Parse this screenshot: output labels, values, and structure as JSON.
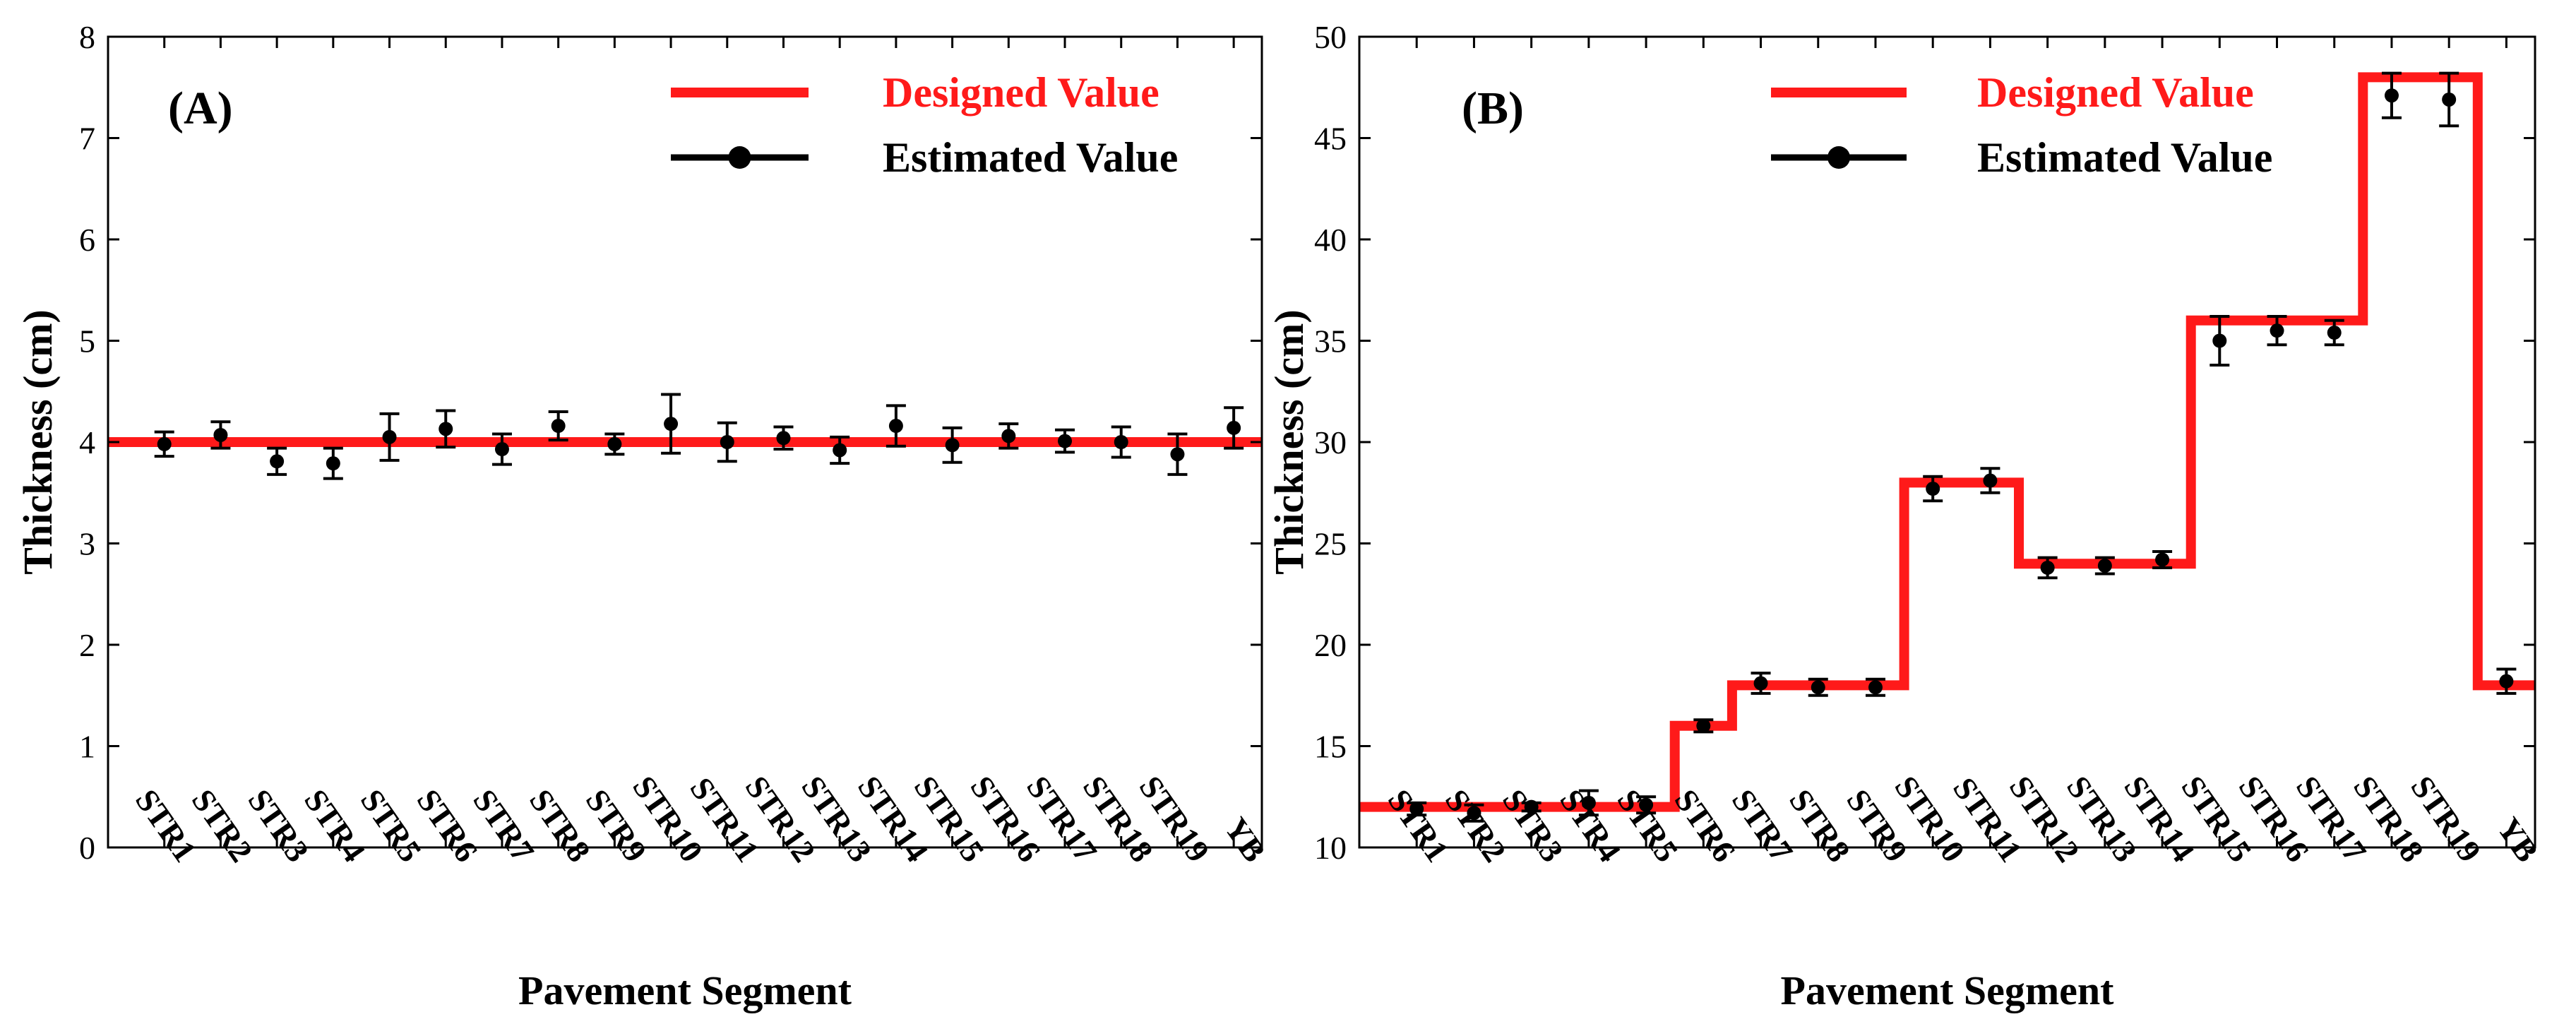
{
  "colors": {
    "designed": "#ff1a1a",
    "estimated": "#000000",
    "axis": "#000000"
  },
  "chart_data": [
    {
      "type": "line",
      "panel_label": "(A)",
      "xlabel": "Pavement Segment",
      "ylabel": "Thickness (cm)",
      "ylim": [
        0,
        8
      ],
      "yticks": [
        0,
        1,
        2,
        3,
        4,
        5,
        6,
        7,
        8
      ],
      "grid": false,
      "legend_position": "top-right",
      "categories": [
        "STR1",
        "STR2",
        "STR3",
        "STR4",
        "STR5",
        "STR6",
        "STR7",
        "STR8",
        "STR9",
        "STR10",
        "STR11",
        "STR12",
        "STR13",
        "STR14",
        "STR15",
        "STR16",
        "STR17",
        "STR18",
        "STR19",
        "YB"
      ],
      "series": [
        {
          "name": "Designed Value",
          "style": "step",
          "values": [
            4,
            4,
            4,
            4,
            4,
            4,
            4,
            4,
            4,
            4,
            4,
            4,
            4,
            4,
            4,
            4,
            4,
            4,
            4,
            4
          ]
        },
        {
          "name": "Estimated Value",
          "style": "errorbar",
          "values": [
            3.98,
            4.07,
            3.81,
            3.79,
            4.05,
            4.13,
            3.93,
            4.16,
            3.98,
            4.18,
            4.0,
            4.04,
            3.92,
            4.16,
            3.97,
            4.06,
            4.01,
            4.0,
            3.88,
            4.14
          ],
          "errors": [
            0.12,
            0.13,
            0.13,
            0.15,
            0.23,
            0.18,
            0.15,
            0.14,
            0.1,
            0.29,
            0.19,
            0.11,
            0.13,
            0.2,
            0.17,
            0.12,
            0.11,
            0.15,
            0.2,
            0.2
          ]
        }
      ]
    },
    {
      "type": "line",
      "panel_label": "(B)",
      "xlabel": "Pavement Segment",
      "ylabel": "Thickness (cm)",
      "ylim": [
        10,
        50
      ],
      "yticks": [
        10,
        15,
        20,
        25,
        30,
        35,
        40,
        45,
        50
      ],
      "grid": false,
      "legend_position": "top-left",
      "categories": [
        "STR1",
        "STR2",
        "STR3",
        "STR4",
        "STR5",
        "STR6",
        "STR7",
        "STR8",
        "STR9",
        "STR10",
        "STR11",
        "STR12",
        "STR13",
        "STR14",
        "STR15",
        "STR16",
        "STR17",
        "STR18",
        "STR19",
        "YB"
      ],
      "series": [
        {
          "name": "Designed Value",
          "style": "step",
          "values": [
            12,
            12,
            12,
            12,
            12,
            16,
            18,
            18,
            18,
            28,
            28,
            24,
            24,
            24,
            36,
            36,
            36,
            48,
            48,
            18
          ]
        },
        {
          "name": "Estimated Value",
          "style": "errorbar",
          "values": [
            11.9,
            11.7,
            12.0,
            12.2,
            12.1,
            16.0,
            18.1,
            17.9,
            17.9,
            27.7,
            28.1,
            23.8,
            23.9,
            24.2,
            35.0,
            35.5,
            35.4,
            47.1,
            46.9,
            18.2
          ],
          "errors": [
            0.3,
            0.4,
            0.2,
            0.6,
            0.4,
            0.3,
            0.5,
            0.4,
            0.4,
            0.6,
            0.6,
            0.5,
            0.4,
            0.4,
            1.2,
            0.7,
            0.6,
            1.1,
            1.3,
            0.6
          ]
        }
      ]
    }
  ]
}
